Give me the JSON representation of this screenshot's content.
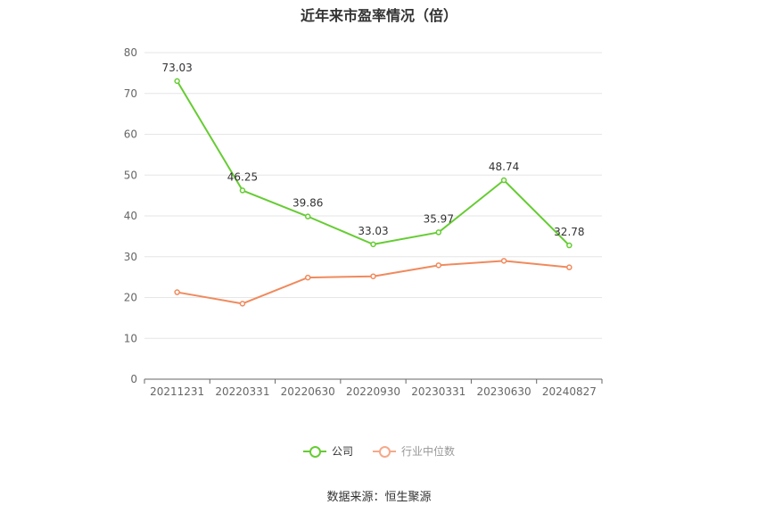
{
  "title": "近年来市盈率情况（倍）",
  "source": "数据来源：恒生聚源",
  "colors": {
    "company": "#66cc33",
    "industry": "#f08a5d",
    "grid": "#e6e6e6",
    "axis": "#666666",
    "tick_text": "#666666"
  },
  "legend": [
    {
      "label": "公司",
      "color": "#66cc33"
    },
    {
      "label": "行业中位数",
      "color": "#f5a98a"
    }
  ],
  "chart_data": {
    "type": "line",
    "title": "近年来市盈率情况（倍）",
    "categories": [
      "20211231",
      "20220331",
      "20220630",
      "20220930",
      "20230331",
      "20230630",
      "20240827"
    ],
    "ylim": [
      0,
      80
    ],
    "yticks": [
      0,
      10,
      20,
      30,
      40,
      50,
      60,
      70,
      80
    ],
    "grid": true,
    "legend_position": "bottom",
    "series": [
      {
        "name": "公司",
        "color": "#66cc33",
        "values": [
          73.03,
          46.25,
          39.86,
          33.03,
          35.97,
          48.74,
          32.78
        ],
        "labels": [
          "73.03",
          "46.25",
          "39.86",
          "33.03",
          "35.97",
          "48.74",
          "32.78"
        ]
      },
      {
        "name": "行业中位数",
        "color": "#f08a5d",
        "values": [
          21.3,
          18.5,
          24.9,
          25.2,
          27.9,
          29.0,
          27.4
        ]
      }
    ]
  }
}
